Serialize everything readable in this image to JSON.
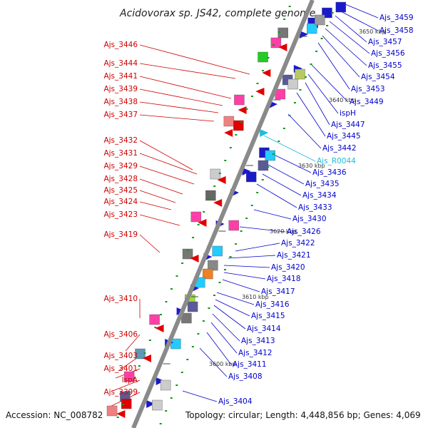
{
  "title": "Acidovorax sp. JS42, complete genome",
  "footer": {
    "accession": "Accession: NC_008782",
    "summary": "Topology: circular; Length: 4,448,856 bp; Genes: 4,069"
  },
  "colors": {
    "reverse_label": "#cc0000",
    "forward_label": "#0000cc",
    "rna_label": "#22bbdd",
    "backbone": "#888888",
    "tick_mark": "#119911"
  },
  "tick_labels": [
    "3650 kbp",
    "3640 kbp",
    "3630 kbp",
    "3620 kbp",
    "3610 kbp",
    "3600 kbp"
  ],
  "left_labels": [
    "Ajs_3446",
    "Ajs_3444",
    "Ajs_3441",
    "Ajs_3439",
    "Ajs_3438",
    "Ajs_3437",
    "Ajs_3432",
    "Ajs_3431",
    "Ajs_3429",
    "Ajs_3428",
    "Ajs_3425",
    "Ajs_3424",
    "Ajs_3423",
    "Ajs_3419",
    "Ajs_3410",
    "Ajs_3406",
    "Ajs_3403",
    "Ajs_3401",
    "lspA",
    "Ajs_3399"
  ],
  "right_labels": [
    "Ajs_3459",
    "Ajs_3458",
    "Ajs_3457",
    "Ajs_3456",
    "Ajs_3455",
    "Ajs_3454",
    "Ajs_3453",
    "Ajs_3449",
    "ispH",
    "Ajs_3447",
    "Ajs_3445",
    "Ajs_3442",
    "Ajs_R0044",
    "Ajs_3436",
    "Ajs_3435",
    "Ajs_3434",
    "Ajs_3433",
    "Ajs_3430",
    "Ajs_3426",
    "Ajs_3422",
    "Ajs_3421",
    "Ajs_3420",
    "Ajs_3418",
    "Ajs_3417",
    "Ajs_3416",
    "Ajs_3415",
    "Ajs_3414",
    "Ajs_3413",
    "Ajs_3412",
    "Ajs_3411",
    "Ajs_3408",
    "Ajs_3404"
  ]
}
